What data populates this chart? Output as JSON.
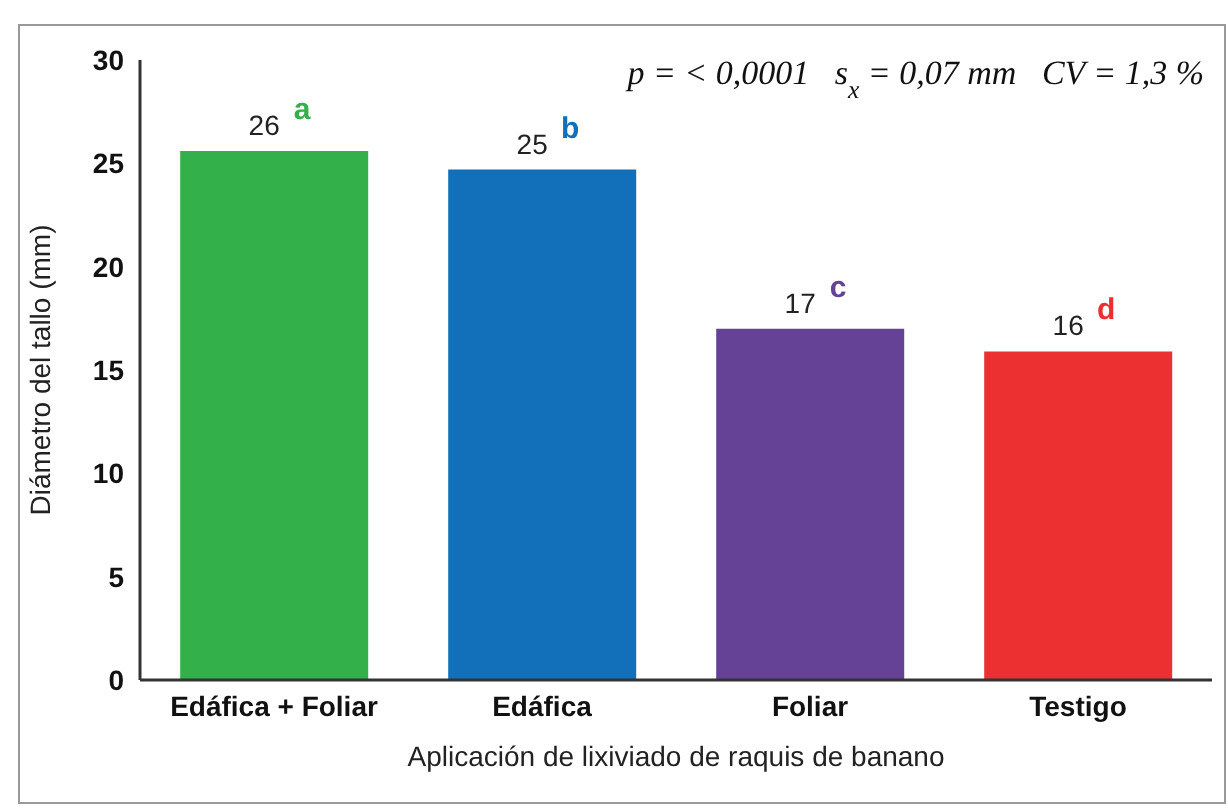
{
  "chart_data": {
    "type": "bar",
    "xlabel": "Aplicación de lixiviado de raquis de banano",
    "ylabel": "Diámetro del tallo (mm)",
    "categories": [
      "Edáfica + Foliar",
      "Edáfica",
      "Foliar",
      "Testigo"
    ],
    "values": [
      25.6,
      24.7,
      17.0,
      15.9
    ],
    "colors": [
      "#33b04a",
      "#1170b9",
      "#654296",
      "#ec2f31"
    ],
    "value_labels": [
      "26",
      "25",
      "17",
      "16"
    ],
    "ylim": [
      0,
      30
    ],
    "yticks": [
      0,
      5,
      10,
      15,
      20,
      25,
      30
    ],
    "grid": false,
    "legend": false,
    "annotations": [
      "p = < 0,0001   s$_{x}$ = 0,07 mm   CV = 1,3 %",
      {
        "text": "a",
        "x": "Edáfica + Foliar",
        "y": 25.6
      },
      {
        "text": "b",
        "x": "Edáfica",
        "y": 24.7
      },
      {
        "text": "c",
        "x": "Foliar",
        "y": 17.0
      },
      {
        "text": "d",
        "x": "Testigo",
        "y": 15.9
      }
    ]
  }
}
